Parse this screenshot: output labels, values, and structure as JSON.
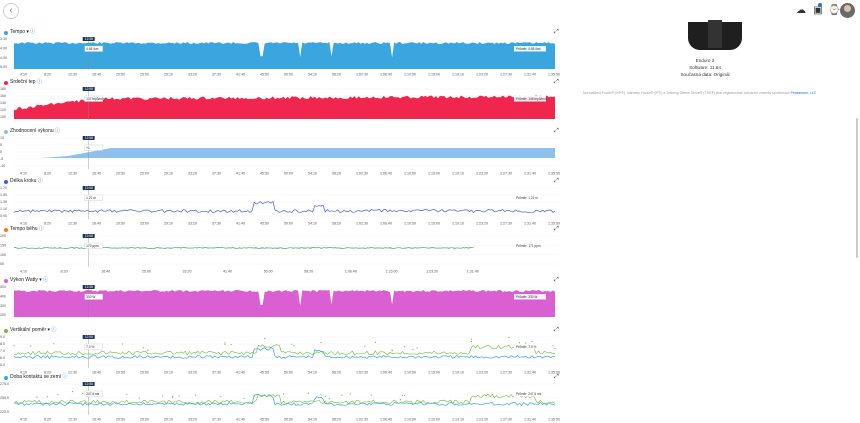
{
  "topbar": {
    "back": "‹",
    "icons": [
      "cloud-sync-icon",
      "inbox-icon",
      "watch-icon"
    ]
  },
  "device": {
    "name": "Enduro 3",
    "software": "Software: 11.84",
    "source": "Současná data: Originál"
  },
  "note": {
    "text": "Normalized Power® (NP®), Intensity Factor® (IF®) a Training Stress Score® (TSS®) jsou registrované ochranné známky společnosti ",
    "link": "Peaksware, LLC"
  },
  "colors": {
    "tempo": "#3aa6e0",
    "heart": "#f0264f",
    "power_est": "#8ec0ec",
    "stride": "#3e63c8",
    "cadence_green": "#6cbd3a",
    "cadence_blue": "#3aa6e0",
    "watts": "#d95fd2",
    "vert": "#6cbd3a",
    "contact": "#6cbd3a"
  },
  "charts": [
    {
      "title": "Tempo ▾",
      "dot": "#3aa6e0",
      "tip_time": "12:58",
      "tip_value": "4:55 /km",
      "tip_at": 0.137,
      "avg_label": "Průměr: 4:55 /km",
      "yticks": [
        "3:30",
        "4:00",
        "4:30",
        "5:00"
      ],
      "xticks": [
        "4:10",
        "8:20",
        "12:30",
        "16:40",
        "20:50",
        "25:00",
        "29:10",
        "33:20",
        "37:30",
        "41:40",
        "45:50",
        "50:00",
        "54:10",
        "58:20",
        "1:02:30",
        "1:06:40",
        "1:10:50",
        "1:15:00",
        "1:19:10",
        "1:23:20",
        "1:27:30",
        "1:31:40",
        "1:35:50"
      ]
    },
    {
      "title": "Srdeční tep",
      "dot": "#f0264f",
      "tip_time": "12:58",
      "tip_value": "137 tepů/min",
      "tip_at": 0.137,
      "avg_label": "Průměr: 148 tepů/min",
      "yticks": [
        "180",
        "160",
        "140",
        "120",
        "100"
      ],
      "xticks": []
    },
    {
      "title": "Zhodnocení výkonu",
      "dot": "#8ec0ec",
      "tip_time": "12:58",
      "tip_value": "+1",
      "tip_at": 0.137,
      "avg_label": "",
      "yticks": [
        "10",
        "5",
        "0",
        "-5",
        "-10"
      ],
      "xticks": [
        "4:10",
        "8:20",
        "12:30",
        "16:40",
        "20:50",
        "25:00",
        "29:10",
        "33:20",
        "37:30",
        "41:40",
        "45:50",
        "50:00",
        "54:10",
        "58:20",
        "1:02:30",
        "1:06:40",
        "1:10:50",
        "1:15:00",
        "1:19:10",
        "1:23:20",
        "1:27:30",
        "1:31:40",
        "1:35:50"
      ]
    },
    {
      "title": "Délka kroku",
      "dot": "#3e63c8",
      "tip_time": "12:58",
      "tip_value": "1,21 m",
      "tip_at": 0.137,
      "avg_label": "Průměr: 1,21 m",
      "yticks": [
        "1.70",
        "1.50",
        "1.30",
        "1.10",
        "0.90"
      ],
      "xticks": [
        "4:10",
        "8:20",
        "12:30",
        "16:40",
        "20:50",
        "25:00",
        "29:10",
        "33:20",
        "37:30",
        "41:40",
        "45:50",
        "50:00",
        "54:10",
        "58:20",
        "1:02:30",
        "1:06:40",
        "1:10:50",
        "1:15:00",
        "1:19:10",
        "1:23:20",
        "1:27:30",
        "1:31:40",
        "1:35:50"
      ]
    },
    {
      "title": "Tempo běhu",
      "dot": "#ff7a00",
      "tip_time": "12:58",
      "tip_value": "170 ppm",
      "tip_at": 0.137,
      "avg_label": "Průměr: 171 ppm",
      "yticks": [
        "200",
        "150",
        "100",
        "50"
      ],
      "xticks": [
        "4:10",
        "8:20",
        "16:40",
        "25:00",
        "33:20",
        "41:40",
        "50:00",
        "58:20",
        "1:06:40",
        "1:15:00",
        "1:23:20",
        "1:31:40"
      ]
    },
    {
      "title": "Výkon Watty ▾",
      "dot": "#d95fd2",
      "tip_time": "12:58",
      "tip_value": "330 W",
      "tip_at": 0.137,
      "avg_label": "Průměr: 330 W",
      "yticks": [
        "500",
        "400",
        "300",
        "200"
      ],
      "xticks": []
    },
    {
      "title": "Vertikální poměr ▾",
      "dot": "#6cbd3a",
      "tip_time": "12:58",
      "tip_value": "7,0 %",
      "tip_at": 0.137,
      "avg_label": "Průměr: 7,0 %",
      "yticks": [
        "9.0",
        "8.0",
        "7.0",
        "6.0",
        "5.0"
      ],
      "xticks": [
        "4:10",
        "8:20",
        "12:30",
        "16:40",
        "20:50",
        "25:00",
        "29:10",
        "33:20",
        "37:30",
        "41:40",
        "45:50",
        "50:00",
        "54:10",
        "58:20",
        "1:02:30",
        "1:06:40",
        "1:10:50",
        "1:15:00",
        "1:19:10",
        "1:23:20",
        "1:27:30",
        "1:31:40",
        "1:35:50"
      ]
    },
    {
      "title": "Doba kontaktu se zemí",
      "dot": "#3aa6e0",
      "tip_time": "12:58",
      "tip_value": "247,6 ms",
      "tip_at": 0.137,
      "avg_label": "Průměr: 247,6 ms",
      "yticks": [
        "275.0",
        "250.0",
        "225.0"
      ],
      "xticks": [
        "4:10",
        "8:20",
        "12:30",
        "16:40",
        "20:50",
        "25:00",
        "29:10",
        "33:20",
        "37:30",
        "41:40",
        "45:50",
        "50:00",
        "54:10",
        "58:20",
        "1:02:30",
        "1:06:40",
        "1:10:50",
        "1:15:00",
        "1:19:10",
        "1:23:20",
        "1:27:30",
        "1:31:40",
        "1:35:50"
      ]
    }
  ]
}
